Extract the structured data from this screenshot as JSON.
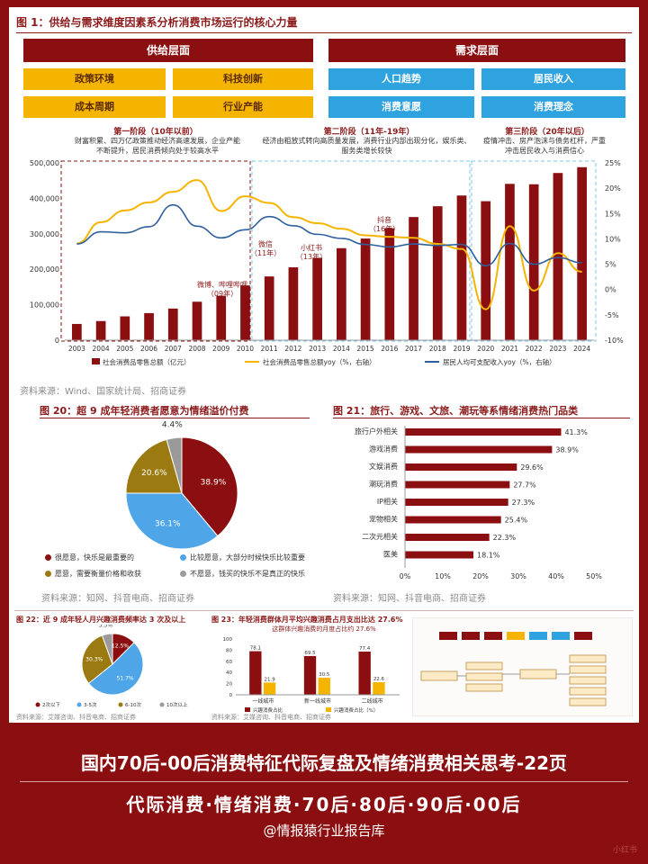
{
  "fig1": {
    "title": "图 1：供给与需求维度因素系分析消费市场运行的核心力量",
    "supply_header": "供给层面",
    "demand_header": "需求层面",
    "factors": [
      "政策环境",
      "科技创新",
      "人口趋势",
      "居民收入",
      "成本周期",
      "行业产能",
      "消费意愿",
      "消费理念"
    ],
    "phases": [
      {
        "title": "第一阶段（10年以前）",
        "desc": "财富积累、四万亿政策推动经济高速发展，企业产能不断提升，居民消费倾向处于较高水平"
      },
      {
        "title": "第二阶段（11年-19年）",
        "desc": "经济由粗放式转向高质量发展，消费行业内部出现分化，娱乐类、服务类增长较快"
      },
      {
        "title": "第三阶段（20年以后）",
        "desc": "疫情冲击、房产泡沫与债务杠杆，严重冲击居民收入与消费信心"
      }
    ],
    "annotations": [
      "微信（11年）",
      "微博、哔哩哔哩（09年）",
      "小红书（13年）",
      "抖音（16年）"
    ],
    "source": "资料来源：Wind、国家统计局、招商证券"
  },
  "fig20": {
    "title": "图 20：超 9 成年轻消费者愿意为情绪溢价付费",
    "legend": [
      "很愿意，快乐是最重要的",
      "比较愿意，大部分时候快乐比较重要",
      "愿意，需要衡量价格和收获",
      "不愿意，钱买的快乐不是真正的快乐"
    ],
    "source": "资料来源：知网、抖音电商、招商证券"
  },
  "fig21": {
    "title": "图 21：旅行、游戏、文旅、潮玩等系情绪消费热门品类",
    "source": "资料来源：知网、抖音电商、招商证券"
  },
  "fig22": {
    "title": "图 22：近 9 成年轻人月兴趣消费频率达 3 次及以上",
    "source": "资料来源：艾媒咨询、抖音电商、招商证券"
  },
  "fig23": {
    "title": "图 23：年轻消费群体月平均兴趣消费占月支出比达 27.6%",
    "subtitle": "这群体兴趣消费的月度占比约 27.6%",
    "source": "资料来源：艾媒咨询、抖音电商、招商证券"
  },
  "bottom": {
    "line1": "国内70后-00后消费特征代际复盘及情绪消费相关思考-22页",
    "line2": "代际消费·情绪消费·70后·80后·90后·00后",
    "line3": "@情报猿行业报告库"
  },
  "watermark": "小红书",
  "chart_data": [
    {
      "type": "bar",
      "categories": [
        "2003",
        "2004",
        "2005",
        "2006",
        "2007",
        "2008",
        "2009",
        "2010",
        "2011",
        "2012",
        "2013",
        "2014",
        "2015",
        "2016",
        "2017",
        "2018",
        "2019",
        "2020",
        "2021",
        "2022",
        "2023",
        "2024"
      ],
      "series": [
        {
          "name": "社会消费品零售总额（亿元）",
          "values": [
            45842,
            53950,
            67177,
            76410,
            89210,
            108488,
            125343,
            154554,
            179804,
            205517,
            232253,
            259487,
            286588,
            315806,
            347327,
            377783,
            408017,
            391981,
            440823,
            439733,
            471495,
            487895
          ]
        },
        {
          "name": "社会消费品零售总额yoy（%，右轴）",
          "type": "line",
          "values": [
            9.1,
            13.3,
            15.6,
            17.2,
            19.3,
            21.6,
            15.5,
            18.4,
            17.1,
            14.3,
            13.1,
            12.0,
            10.7,
            10.4,
            10.2,
            9.0,
            8.0,
            -3.9,
            12.5,
            -0.2,
            7.2,
            3.5
          ]
        },
        {
          "name": "居民人均可支配收入yoy（%，右轴）",
          "type": "line",
          "values": [
            9.0,
            11.4,
            11.2,
            12.4,
            16.7,
            12.5,
            10.2,
            11.8,
            14.4,
            12.6,
            10.9,
            10.1,
            8.9,
            8.4,
            9.0,
            8.7,
            8.9,
            4.7,
            9.1,
            5.0,
            6.3,
            5.3
          ]
        }
      ],
      "ylim": [
        0,
        500000
      ],
      "y2lim": [
        -10,
        25
      ],
      "yticks": [
        "0",
        "100,000",
        "200,000",
        "300,000",
        "400,000",
        "500,000"
      ],
      "y2ticks": [
        "-10%",
        "-5%",
        "0%",
        "5%",
        "10%",
        "15%",
        "20%",
        "25%"
      ]
    },
    {
      "type": "pie",
      "categories": [
        "很愿意，快乐是最重要的",
        "比较愿意，大部分时候快乐比较重要",
        "愿意，需要衡量价格和收获",
        "不愿意，钱买的快乐不是真正的快乐"
      ],
      "values": [
        38.9,
        36.1,
        20.6,
        4.4
      ],
      "labels": [
        "38.9%",
        "36.1%",
        "20.6%",
        "4.4%"
      ],
      "colors": [
        "#8b0f10",
        "#4ea6e8",
        "#9c7a12",
        "#9a9a9a"
      ]
    },
    {
      "type": "bar",
      "orientation": "horizontal",
      "categories": [
        "旅行户外相关",
        "游戏消费",
        "文娱消费",
        "潮玩消费",
        "IP相关",
        "宠物相关",
        "二次元相关",
        "医美"
      ],
      "values": [
        41.3,
        38.9,
        29.6,
        27.7,
        27.3,
        25.4,
        22.3,
        18.1
      ],
      "labels": [
        "41.3%",
        "38.9%",
        "29.6%",
        "27.7%",
        "27.3%",
        "25.4%",
        "22.3%",
        "18.1%"
      ],
      "xticks": [
        "0%",
        "10%",
        "20%",
        "30%",
        "40%",
        "50%"
      ],
      "xlim": [
        0,
        50
      ]
    },
    {
      "type": "pie",
      "categories": [
        "2次以下",
        "3-5次",
        "6-10次",
        "10次以上"
      ],
      "values": [
        12.5,
        51.7,
        30.3,
        5.5
      ],
      "labels": [
        "12.5%",
        "51.7%",
        "30.3%",
        "5.5%"
      ],
      "colors": [
        "#8b0f10",
        "#4ea6e8",
        "#9c7a12",
        "#9a9a9a"
      ]
    },
    {
      "type": "bar",
      "categories": [
        "一线城市",
        "新一线城市",
        "二线城市"
      ],
      "series": [
        {
          "name": "兴趣消费占比",
          "values": [
            78.1,
            69.5,
            77.4
          ]
        },
        {
          "name": "兴趣消费占比（%）",
          "values": [
            21.9,
            30.5,
            22.6
          ]
        }
      ],
      "labels": [
        [
          "78.1",
          "69.5",
          "77.4"
        ],
        [
          "21.9",
          "30.5",
          "22.6"
        ]
      ],
      "yticks": [
        "0",
        "20",
        "40",
        "60",
        "80",
        "100"
      ],
      "ylim": [
        0,
        100
      ]
    }
  ]
}
